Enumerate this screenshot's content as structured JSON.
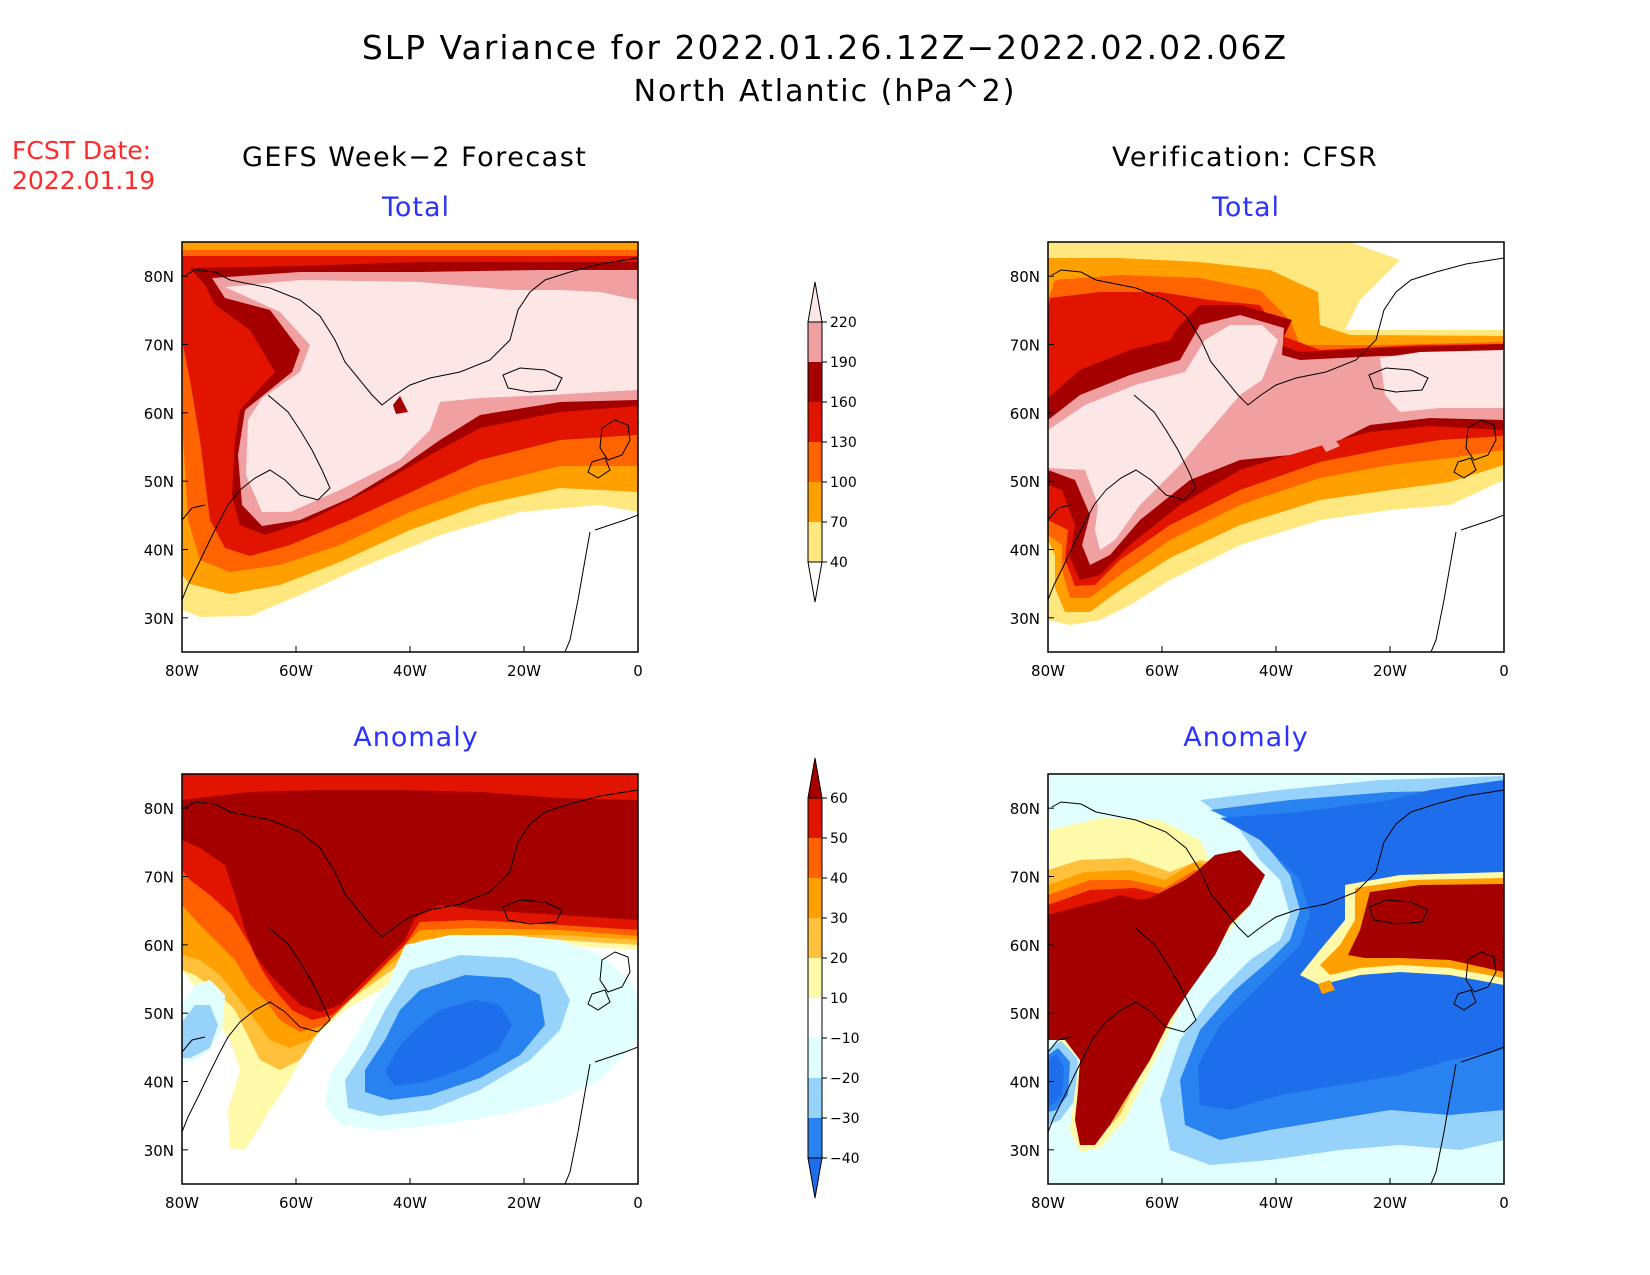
{
  "title": {
    "line1": "SLP Variance for 2022.01.26.12Z−2022.02.02.06Z",
    "line2": "North Atlantic (hPa^2)"
  },
  "fcst": {
    "line1": "FCST Date:",
    "line2": "2022.01.19"
  },
  "columns": {
    "left": "GEFS Week−2 Forecast",
    "right": "Verification: CFSR"
  },
  "panels": {
    "total_label": "Total",
    "anomaly_label": "Anomaly"
  },
  "axes": {
    "lon_ticks": [
      "80W",
      "60W",
      "40W",
      "20W",
      "0"
    ],
    "lat_ticks": [
      "80N",
      "70N",
      "60N",
      "50N",
      "40N",
      "30N"
    ],
    "lon_range_deg": [
      -80,
      0
    ],
    "lat_range_deg": [
      25,
      85
    ]
  },
  "colorbars": {
    "total": {
      "levels": [
        "40",
        "70",
        "100",
        "130",
        "160",
        "190",
        "220"
      ],
      "colors": [
        "#ffffff",
        "#ffe880",
        "#ffa000",
        "#ff6400",
        "#e11400",
        "#a50000",
        "#f0a0a0",
        "#fde6e6"
      ]
    },
    "anomaly": {
      "levels": [
        "−40",
        "−30",
        "−20",
        "−10",
        "10",
        "20",
        "30",
        "40",
        "50",
        "60"
      ],
      "colors": [
        "#1e6eeb",
        "#2882f0",
        "#96d2fa",
        "#e1ffff",
        "#ffffff",
        "#fffaaa",
        "#ffc03c",
        "#ffa000",
        "#ff6000",
        "#e11400",
        "#a50000"
      ]
    }
  }
}
